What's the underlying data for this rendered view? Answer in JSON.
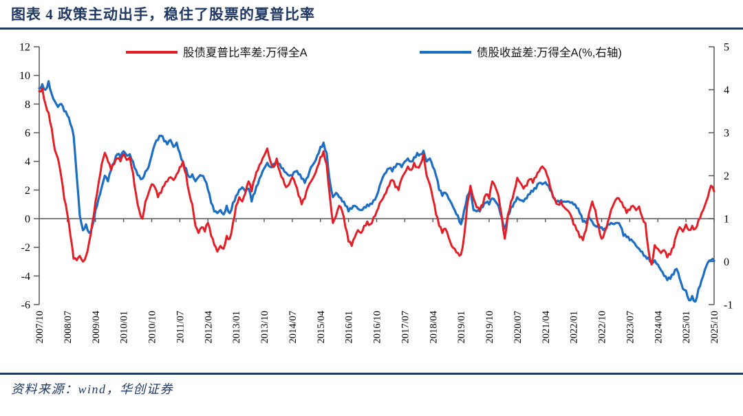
{
  "page": {
    "title": "图表 4  政策主动出手，稳住了股票的夏普比率",
    "source_note": "资料来源：wind，华创证券"
  },
  "colors": {
    "accent_navy": "#1f3864",
    "series_red": "#e41e26",
    "series_blue": "#1b6ec2",
    "axis_gray": "#555555"
  },
  "chart_data": {
    "type": "line",
    "title": "政策主动出手，稳住了股票的夏普比率",
    "x_start": "2007/10",
    "x_frequency": "monthly",
    "x_tick_every": 9,
    "x_tick_labels": [
      "2007/10",
      "2008/07",
      "2009/04",
      "2010/01",
      "2010/10",
      "2011/07",
      "2012/04",
      "2013/01",
      "2013/10",
      "2014/07",
      "2015/04",
      "2016/01",
      "2016/10",
      "2017/07",
      "2018/04",
      "2019/01",
      "2019/10",
      "2020/07",
      "2021/04",
      "2022/01",
      "2022/10",
      "2023/07",
      "2024/04",
      "2025/01",
      "2025/10"
    ],
    "left_axis": {
      "min": -6,
      "max": 12,
      "step": 2,
      "ticks": [
        "12",
        "10",
        "8",
        "6",
        "4",
        "2",
        "0",
        "-2",
        "-4",
        "-6"
      ]
    },
    "right_axis": {
      "min": -1,
      "max": 5,
      "step": 1,
      "ticks": [
        "5",
        "4",
        "3",
        "2",
        "1",
        "0",
        "-1"
      ]
    },
    "grid": false,
    "legend_position": "top",
    "style": {
      "axis_color": "#555555",
      "line_width": 3
    },
    "series": [
      {
        "name": "股债夏普比率差:万得全A",
        "axis": "left",
        "color": "#e41e26",
        "values": [
          8.9,
          9.1,
          8.0,
          7.4,
          6.3,
          4.8,
          4.2,
          3.0,
          1.4,
          0.3,
          -1.2,
          -2.8,
          -2.9,
          -2.6,
          -3.0,
          -2.6,
          -1.6,
          -0.3,
          1.2,
          2.5,
          3.8,
          4.6,
          4.0,
          3.4,
          3.8,
          4.2,
          4.0,
          4.5,
          4.1,
          4.3,
          3.2,
          1.7,
          0.6,
          0.0,
          1.2,
          1.8,
          2.4,
          2.2,
          1.5,
          1.8,
          2.3,
          2.6,
          2.9,
          2.7,
          3.1,
          3.6,
          4.0,
          3.1,
          1.8,
          1.0,
          -0.5,
          -1.0,
          -0.6,
          -0.9,
          -0.3,
          -1.2,
          -1.8,
          -2.3,
          -1.9,
          -2.1,
          -1.2,
          -1.4,
          -0.3,
          0.9,
          1.5,
          1.2,
          1.8,
          2.6,
          1.9,
          2.8,
          3.4,
          3.9,
          4.4,
          4.9,
          4.0,
          3.6,
          4.2,
          3.3,
          2.8,
          2.2,
          2.4,
          2.9,
          2.4,
          1.6,
          1.0,
          1.4,
          2.2,
          2.6,
          3.0,
          3.6,
          4.3,
          4.7,
          3.8,
          1.6,
          -0.3,
          0.2,
          0.9,
          0.5,
          -0.6,
          -1.6,
          -1.9,
          -1.3,
          -0.8,
          -1.0,
          -0.5,
          -0.2,
          -0.4,
          0.1,
          0.5,
          1.1,
          1.4,
          1.8,
          2.3,
          2.7,
          2.2,
          2.0,
          2.8,
          3.2,
          3.65,
          3.4,
          3.9,
          3.6,
          3.8,
          4.5,
          3.0,
          2.4,
          1.4,
          0.3,
          -0.5,
          -1.0,
          -0.7,
          -1.3,
          -1.9,
          -2.1,
          -2.4,
          -2.5,
          -1.2,
          1.0,
          2.3,
          1.4,
          0.8,
          0.6,
          1.0,
          1.7,
          1.4,
          2.6,
          2.2,
          1.6,
          0.2,
          -1.4,
          0.3,
          1.2,
          1.9,
          2.85,
          2.5,
          2.1,
          2.3,
          2.75,
          2.5,
          2.9,
          3.3,
          3.65,
          3.4,
          2.8,
          1.9,
          1.4,
          1.0,
          1.2,
          0.8,
          0.6,
          0.3,
          -0.4,
          -0.8,
          -1.3,
          -1.5,
          -0.8,
          0.4,
          1.2,
          0.6,
          -0.5,
          -1.4,
          -0.9,
          -0.2,
          0.6,
          1.1,
          1.44,
          1.2,
          0.8,
          0.4,
          0.6,
          0.9,
          0.6,
          0.85,
          0.1,
          -0.3,
          -2.2,
          -3.2,
          -1.85,
          -2.1,
          -2.4,
          -2.2,
          -2.7,
          -2.5,
          -2.0,
          -1.1,
          -0.6,
          -0.9,
          -0.4,
          -0.8,
          -0.5,
          -0.7,
          -0.1,
          0.4,
          0.9,
          1.5,
          2.3,
          1.9
        ]
      },
      {
        "name": "债股收益差:万得全A(%,右轴)",
        "axis": "right",
        "color": "#1b6ec2",
        "values": [
          4.03,
          4.13,
          4.0,
          4.2,
          3.9,
          3.73,
          3.6,
          3.67,
          3.5,
          3.4,
          3.2,
          2.93,
          2.0,
          1.07,
          0.73,
          0.87,
          0.67,
          0.83,
          1.2,
          1.47,
          1.73,
          2.0,
          1.87,
          2.13,
          2.3,
          2.5,
          2.43,
          2.57,
          2.47,
          2.5,
          2.33,
          2.13,
          2.0,
          1.93,
          2.1,
          2.2,
          2.47,
          2.73,
          2.83,
          2.93,
          2.8,
          2.73,
          2.83,
          2.67,
          2.77,
          2.53,
          2.33,
          2.17,
          1.97,
          2.03,
          1.87,
          1.97,
          2.0,
          1.9,
          1.67,
          1.37,
          1.17,
          1.13,
          1.2,
          1.1,
          1.3,
          1.13,
          1.37,
          1.53,
          1.67,
          1.73,
          1.63,
          1.7,
          1.4,
          1.6,
          1.8,
          2.0,
          2.17,
          2.3,
          2.2,
          2.27,
          2.38,
          2.27,
          2.17,
          2.07,
          2.0,
          2.0,
          2.1,
          2.03,
          1.93,
          1.83,
          1.97,
          2.2,
          2.3,
          2.47,
          2.67,
          2.77,
          2.53,
          1.87,
          1.5,
          1.6,
          1.5,
          1.4,
          1.3,
          1.17,
          1.23,
          1.3,
          1.23,
          1.2,
          1.27,
          1.33,
          1.35,
          1.43,
          1.53,
          1.77,
          1.97,
          2.07,
          2.17,
          2.1,
          2.2,
          2.27,
          2.2,
          2.33,
          2.4,
          2.33,
          2.43,
          2.53,
          2.5,
          2.58,
          2.33,
          2.4,
          2.2,
          2.0,
          1.67,
          1.53,
          1.6,
          1.47,
          1.35,
          1.2,
          1.07,
          0.87,
          1.2,
          1.53,
          1.7,
          1.2,
          1.17,
          1.17,
          1.27,
          1.37,
          1.33,
          1.47,
          1.4,
          1.3,
          1.03,
          0.77,
          1.07,
          1.27,
          1.37,
          1.5,
          1.43,
          1.4,
          1.47,
          1.57,
          1.63,
          1.7,
          1.83,
          1.8,
          1.85,
          1.77,
          1.63,
          1.45,
          1.42,
          1.43,
          1.4,
          1.4,
          1.37,
          1.33,
          1.25,
          1.13,
          0.93,
          0.9,
          1.03,
          0.93,
          0.83,
          0.87,
          0.8,
          0.77,
          0.87,
          0.9,
          0.87,
          0.9,
          0.83,
          0.6,
          0.57,
          0.5,
          0.47,
          0.37,
          0.3,
          0.23,
          0.13,
          0.1,
          0.0,
          0.03,
          -0.07,
          -0.2,
          -0.33,
          -0.43,
          -0.4,
          -0.3,
          -0.17,
          -0.4,
          -0.63,
          -0.67,
          -0.9,
          -0.8,
          -0.93,
          -0.63,
          -0.43,
          -0.2,
          -0.02,
          0.03,
          0.02
        ]
      }
    ]
  }
}
